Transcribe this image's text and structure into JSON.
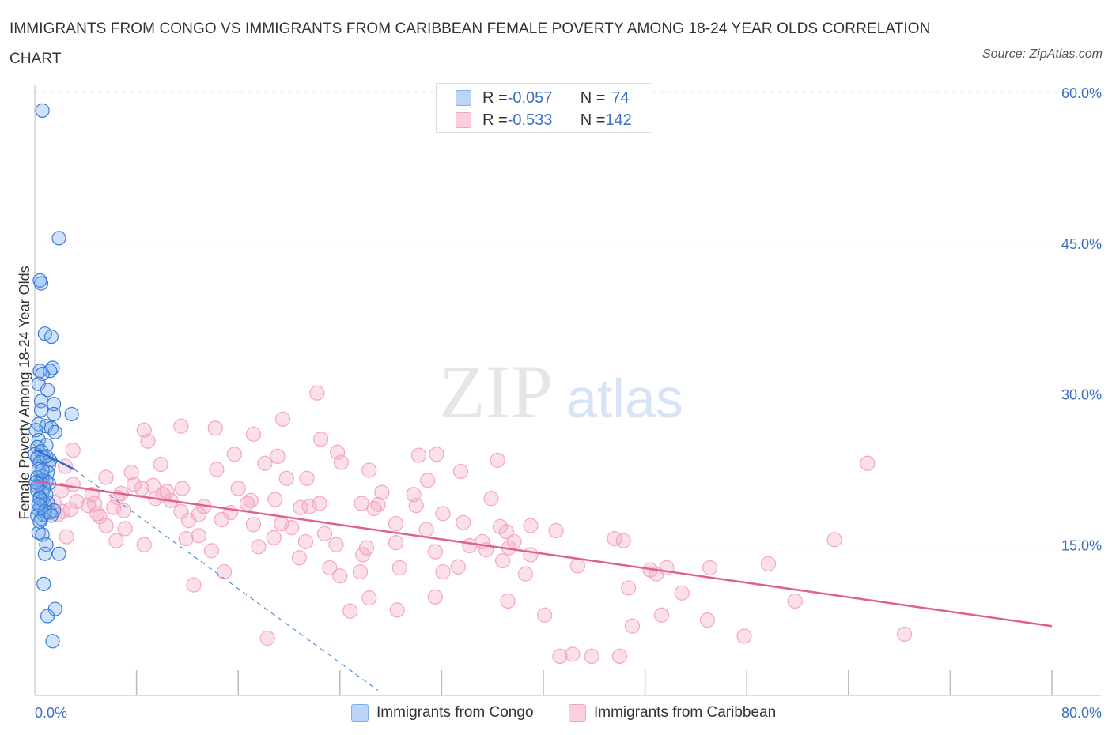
{
  "header": {
    "title": "IMMIGRANTS FROM CONGO VS IMMIGRANTS FROM CARIBBEAN FEMALE POVERTY AMONG 18-24 YEAR OLDS CORRELATION CHART",
    "source": "Source: ZipAtlas.com"
  },
  "watermark": {
    "zip": "ZIP",
    "atlas": "atlas"
  },
  "legend_top": {
    "rows": [
      {
        "r_label": "R = ",
        "r_value": "-0.057",
        "n_label": "N = ",
        "n_value": "74",
        "color": "#7ab0f0"
      },
      {
        "r_label": "R = ",
        "r_value": "-0.533",
        "n_label": "N = ",
        "n_value": "142",
        "color": "#f4a6bf"
      }
    ]
  },
  "legend_bottom": {
    "items": [
      {
        "label": "Immigrants from Congo",
        "color": "#7ab0f0"
      },
      {
        "label": "Immigrants from Caribbean",
        "color": "#f4a6bf"
      }
    ]
  },
  "chart_data": {
    "type": "scatter",
    "title": "IMMIGRANTS FROM CONGO VS IMMIGRANTS FROM CARIBBEAN FEMALE POVERTY AMONG 18-24 YEAR OLDS CORRELATION CHART",
    "xlabel": "",
    "ylabel": "Female Poverty Among 18-24 Year Olds",
    "xlim": [
      0,
      80
    ],
    "ylim": [
      0,
      60
    ],
    "x_tick_labels": {
      "min": "0.0%",
      "max": "80.0%"
    },
    "y_ticks": [
      {
        "value": 15,
        "label": "15.0%"
      },
      {
        "value": 30,
        "label": "30.0%"
      },
      {
        "value": 45,
        "label": "45.0%"
      },
      {
        "value": 60,
        "label": "60.0%"
      }
    ],
    "x_minor_ticks": [
      8,
      16,
      24,
      32,
      40,
      48,
      56,
      64,
      72,
      80
    ],
    "grid": true,
    "series": [
      {
        "name": "Immigrants from Congo",
        "color": "#7ab0f0",
        "stroke": "#3a7bd5",
        "trend": {
          "x0": 0,
          "y0": 24.5,
          "x1": 3.1,
          "y1": 22.5
        },
        "trend_dashed": {
          "x0": 3.1,
          "y0": 22.5,
          "x1": 27,
          "y1": 0.5
        },
        "points": [
          [
            0.6,
            58.2
          ],
          [
            1.9,
            45.5
          ],
          [
            0.5,
            41.0
          ],
          [
            0.4,
            41.3
          ],
          [
            0.8,
            36.0
          ],
          [
            1.3,
            35.7
          ],
          [
            0.4,
            32.3
          ],
          [
            1.4,
            32.6
          ],
          [
            1.2,
            32.3
          ],
          [
            0.6,
            32.0
          ],
          [
            0.3,
            31.0
          ],
          [
            1.0,
            30.4
          ],
          [
            0.5,
            29.3
          ],
          [
            1.5,
            29.0
          ],
          [
            0.5,
            28.4
          ],
          [
            2.9,
            28.0
          ],
          [
            1.5,
            28.0
          ],
          [
            0.3,
            27.0
          ],
          [
            0.9,
            26.8
          ],
          [
            1.3,
            26.6
          ],
          [
            0.1,
            26.4
          ],
          [
            1.6,
            26.2
          ],
          [
            0.3,
            25.4
          ],
          [
            0.9,
            24.9
          ],
          [
            0.2,
            24.7
          ],
          [
            0.5,
            24.3
          ],
          [
            0.0,
            24.0
          ],
          [
            0.7,
            23.7
          ],
          [
            0.2,
            23.6
          ],
          [
            1.2,
            23.4
          ],
          [
            0.4,
            23.2
          ],
          [
            1.1,
            22.9
          ],
          [
            0.3,
            22.5
          ],
          [
            1.0,
            22.2
          ],
          [
            0.6,
            21.8
          ],
          [
            0.2,
            21.7
          ],
          [
            0.6,
            21.4
          ],
          [
            0.9,
            21.3
          ],
          [
            0.5,
            21.1
          ],
          [
            0.3,
            21.0
          ],
          [
            1.1,
            21.1
          ],
          [
            0.7,
            20.6
          ],
          [
            0.2,
            20.4
          ],
          [
            0.6,
            20.2
          ],
          [
            0.9,
            20.0
          ],
          [
            0.4,
            19.7
          ],
          [
            0.6,
            19.4
          ],
          [
            1.0,
            19.2
          ],
          [
            0.8,
            19.0
          ],
          [
            0.5,
            18.8
          ],
          [
            0.3,
            18.5
          ],
          [
            1.2,
            18.2
          ],
          [
            0.7,
            18.0
          ],
          [
            0.5,
            17.6
          ],
          [
            0.2,
            17.9
          ],
          [
            0.3,
            16.2
          ],
          [
            0.6,
            16.0
          ],
          [
            0.9,
            15.0
          ],
          [
            0.8,
            14.1
          ],
          [
            1.9,
            14.1
          ],
          [
            0.7,
            11.1
          ],
          [
            1.6,
            8.6
          ],
          [
            1.0,
            7.9
          ],
          [
            1.4,
            5.4
          ],
          [
            0.1,
            21.2
          ],
          [
            0.8,
            18.3
          ],
          [
            0.4,
            19.6
          ],
          [
            1.5,
            18.4
          ],
          [
            0.2,
            20.8
          ],
          [
            0.9,
            23.8
          ],
          [
            0.4,
            17.3
          ],
          [
            1.3,
            17.9
          ],
          [
            0.6,
            22.4
          ],
          [
            0.3,
            19.0
          ]
        ]
      },
      {
        "name": "Immigrants from Caribbean",
        "color": "#f4a6bf",
        "stroke": "#e0608e",
        "trend": {
          "x0": 0,
          "y0": 21.3,
          "x1": 80,
          "y1": 6.9
        },
        "points": [
          [
            22.2,
            30.1
          ],
          [
            19.5,
            27.5
          ],
          [
            17.2,
            26.0
          ],
          [
            11.5,
            26.8
          ],
          [
            14.2,
            26.6
          ],
          [
            8.6,
            26.4
          ],
          [
            22.5,
            25.5
          ],
          [
            8.9,
            25.3
          ],
          [
            3.0,
            24.4
          ],
          [
            23.8,
            24.2
          ],
          [
            31.6,
            24.0
          ],
          [
            15.7,
            24.0
          ],
          [
            19.1,
            23.8
          ],
          [
            30.2,
            23.9
          ],
          [
            24.1,
            23.2
          ],
          [
            36.4,
            23.4
          ],
          [
            9.9,
            23.0
          ],
          [
            18.1,
            23.1
          ],
          [
            33.5,
            22.3
          ],
          [
            14.3,
            22.5
          ],
          [
            26.3,
            22.4
          ],
          [
            7.6,
            22.2
          ],
          [
            5.6,
            21.7
          ],
          [
            21.4,
            21.6
          ],
          [
            30.9,
            21.4
          ],
          [
            7.8,
            21.0
          ],
          [
            8.4,
            20.6
          ],
          [
            11.6,
            20.6
          ],
          [
            19.8,
            21.6
          ],
          [
            16.0,
            20.6
          ],
          [
            27.3,
            20.2
          ],
          [
            2.1,
            20.4
          ],
          [
            10.4,
            20.3
          ],
          [
            10.1,
            20.0
          ],
          [
            6.8,
            20.1
          ],
          [
            29.8,
            20.0
          ],
          [
            6.5,
            19.7
          ],
          [
            4.5,
            20.0
          ],
          [
            9.5,
            19.6
          ],
          [
            18.9,
            19.5
          ],
          [
            3.3,
            19.3
          ],
          [
            16.7,
            19.1
          ],
          [
            17.0,
            19.4
          ],
          [
            4.7,
            19.1
          ],
          [
            22.4,
            19.1
          ],
          [
            25.7,
            19.1
          ],
          [
            27.0,
            19.0
          ],
          [
            35.9,
            19.6
          ],
          [
            13.3,
            18.8
          ],
          [
            6.2,
            18.7
          ],
          [
            20.9,
            18.7
          ],
          [
            21.6,
            18.8
          ],
          [
            26.7,
            18.6
          ],
          [
            2.2,
            18.3
          ],
          [
            2.8,
            18.5
          ],
          [
            7.0,
            18.4
          ],
          [
            11.5,
            18.3
          ],
          [
            15.4,
            18.2
          ],
          [
            4.9,
            18.1
          ],
          [
            12.9,
            18.0
          ],
          [
            1.8,
            18.0
          ],
          [
            32.1,
            18.1
          ],
          [
            5.1,
            17.8
          ],
          [
            12.1,
            17.4
          ],
          [
            33.7,
            17.2
          ],
          [
            28.4,
            17.1
          ],
          [
            17.2,
            17.0
          ],
          [
            39.0,
            16.9
          ],
          [
            36.6,
            16.8
          ],
          [
            20.2,
            16.7
          ],
          [
            30.8,
            16.5
          ],
          [
            2.5,
            15.8
          ],
          [
            12.9,
            15.9
          ],
          [
            37.1,
            16.3
          ],
          [
            18.8,
            15.7
          ],
          [
            41.0,
            16.4
          ],
          [
            6.4,
            15.4
          ],
          [
            11.9,
            15.6
          ],
          [
            35.2,
            15.3
          ],
          [
            45.6,
            15.6
          ],
          [
            37.7,
            15.3
          ],
          [
            21.3,
            15.3
          ],
          [
            28.4,
            15.2
          ],
          [
            23.7,
            15.0
          ],
          [
            8.6,
            15.0
          ],
          [
            17.6,
            14.8
          ],
          [
            26.1,
            14.7
          ],
          [
            37.3,
            14.7
          ],
          [
            35.5,
            14.5
          ],
          [
            31.5,
            14.3
          ],
          [
            13.9,
            14.4
          ],
          [
            25.8,
            14.0
          ],
          [
            39.0,
            14.0
          ],
          [
            20.8,
            13.7
          ],
          [
            62.9,
            15.5
          ],
          [
            57.7,
            13.1
          ],
          [
            42.7,
            12.9
          ],
          [
            23.2,
            12.7
          ],
          [
            33.3,
            12.8
          ],
          [
            28.7,
            12.7
          ],
          [
            14.9,
            12.3
          ],
          [
            25.6,
            12.3
          ],
          [
            32.1,
            12.3
          ],
          [
            48.4,
            12.5
          ],
          [
            48.9,
            12.1
          ],
          [
            53.1,
            12.7
          ],
          [
            24.0,
            11.9
          ],
          [
            38.6,
            12.1
          ],
          [
            49.7,
            12.7
          ],
          [
            12.5,
            11.0
          ],
          [
            46.7,
            10.7
          ],
          [
            26.3,
            9.7
          ],
          [
            31.5,
            9.8
          ],
          [
            37.2,
            9.4
          ],
          [
            59.8,
            9.4
          ],
          [
            50.9,
            10.2
          ],
          [
            24.8,
            8.4
          ],
          [
            28.5,
            8.5
          ],
          [
            49.3,
            8.0
          ],
          [
            40.1,
            8.0
          ],
          [
            52.9,
            7.5
          ],
          [
            47.0,
            6.9
          ],
          [
            18.3,
            5.7
          ],
          [
            55.8,
            5.9
          ],
          [
            68.4,
            6.1
          ],
          [
            41.3,
            3.9
          ],
          [
            43.8,
            3.9
          ],
          [
            46.0,
            3.9
          ],
          [
            42.3,
            4.1
          ],
          [
            65.5,
            23.1
          ],
          [
            3.0,
            21.0
          ],
          [
            2.4,
            22.8
          ],
          [
            4.2,
            18.9
          ],
          [
            10.7,
            19.4
          ],
          [
            9.3,
            20.9
          ],
          [
            1.5,
            19.2
          ],
          [
            30.0,
            18.9
          ],
          [
            34.2,
            14.9
          ],
          [
            14.7,
            17.5
          ],
          [
            19.4,
            17.1
          ],
          [
            7.1,
            16.6
          ],
          [
            46.3,
            15.4
          ],
          [
            22.8,
            16.1
          ],
          [
            5.6,
            16.9
          ],
          [
            36.8,
            13.4
          ]
        ]
      }
    ]
  }
}
